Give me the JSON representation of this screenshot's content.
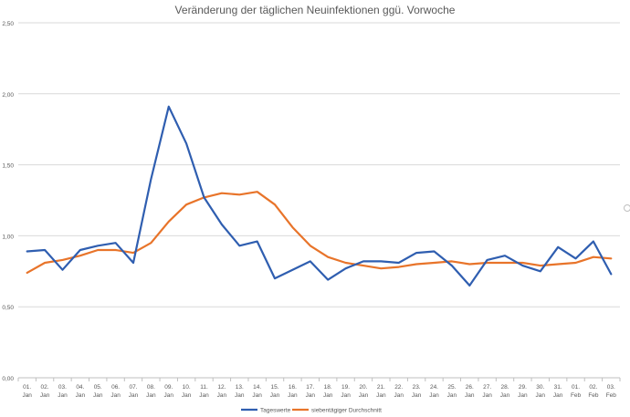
{
  "chart_data": {
    "type": "line",
    "title": "Veränderung der täglichen Neuinfektionen ggü. Vorwoche",
    "xlabel": "",
    "ylabel": "",
    "ylim": [
      0,
      2.5
    ],
    "yticks": [
      "0,00",
      "0,50",
      "1,00",
      "1,50",
      "2,00",
      "2,50"
    ],
    "grid": true,
    "legend_position": "bottom",
    "categories": [
      [
        "01.",
        "Jan"
      ],
      [
        "02.",
        "Jan"
      ],
      [
        "03.",
        "Jan"
      ],
      [
        "04.",
        "Jan"
      ],
      [
        "05.",
        "Jan"
      ],
      [
        "06.",
        "Jan"
      ],
      [
        "07.",
        "Jan"
      ],
      [
        "08.",
        "Jan"
      ],
      [
        "09.",
        "Jan"
      ],
      [
        "10.",
        "Jan"
      ],
      [
        "11.",
        "Jan"
      ],
      [
        "12.",
        "Jan"
      ],
      [
        "13.",
        "Jan"
      ],
      [
        "14.",
        "Jan"
      ],
      [
        "15.",
        "Jan"
      ],
      [
        "16.",
        "Jan"
      ],
      [
        "17.",
        "Jan"
      ],
      [
        "18.",
        "Jan"
      ],
      [
        "19.",
        "Jan"
      ],
      [
        "20.",
        "Jan"
      ],
      [
        "21.",
        "Jan"
      ],
      [
        "22.",
        "Jan"
      ],
      [
        "23.",
        "Jan"
      ],
      [
        "24.",
        "Jan"
      ],
      [
        "25.",
        "Jan"
      ],
      [
        "26.",
        "Jan"
      ],
      [
        "27.",
        "Jan"
      ],
      [
        "28.",
        "Jan"
      ],
      [
        "29.",
        "Jan"
      ],
      [
        "30.",
        "Jan"
      ],
      [
        "31.",
        "Jan"
      ],
      [
        "01.",
        "Feb"
      ],
      [
        "02.",
        "Feb"
      ],
      [
        "03.",
        "Feb"
      ]
    ],
    "series": [
      {
        "name": "Tageswerte",
        "color": "#2f5eb0",
        "values": [
          0.89,
          0.9,
          0.76,
          0.9,
          0.93,
          0.95,
          0.81,
          1.4,
          1.91,
          1.65,
          1.27,
          1.08,
          0.93,
          0.96,
          0.7,
          0.76,
          0.82,
          0.69,
          0.77,
          0.82,
          0.82,
          0.81,
          0.88,
          0.89,
          0.79,
          0.65,
          0.83,
          0.86,
          0.79,
          0.75,
          0.92,
          0.84,
          0.96,
          0.73
        ]
      },
      {
        "name": "siebentägiger Durchschnitt",
        "color": "#e8742a",
        "values": [
          0.74,
          0.81,
          0.83,
          0.86,
          0.9,
          0.9,
          0.88,
          0.95,
          1.1,
          1.22,
          1.27,
          1.3,
          1.29,
          1.31,
          1.22,
          1.06,
          0.93,
          0.85,
          0.81,
          0.79,
          0.77,
          0.78,
          0.8,
          0.81,
          0.82,
          0.8,
          0.81,
          0.81,
          0.81,
          0.79,
          0.8,
          0.81,
          0.85,
          0.84
        ]
      }
    ]
  }
}
